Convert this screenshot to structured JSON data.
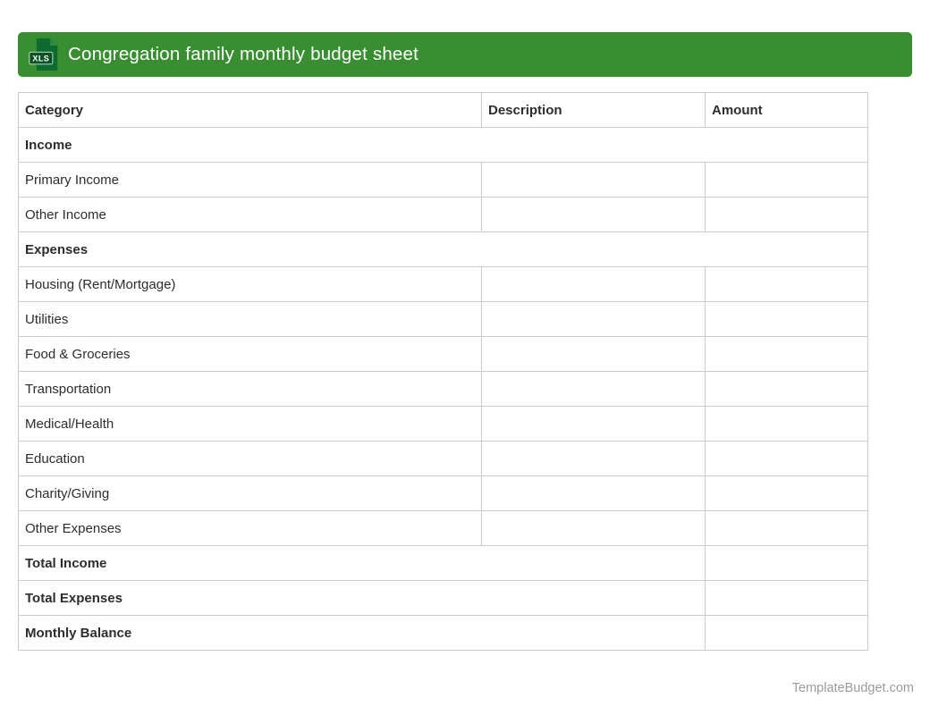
{
  "header": {
    "title": "Congregation family monthly budget sheet",
    "file_icon_label": "XLS"
  },
  "table": {
    "columns": [
      "Category",
      "Description",
      "Amount"
    ],
    "rows": [
      {
        "type": "section",
        "label": "Income"
      },
      {
        "type": "item",
        "category": "Primary Income",
        "description": "",
        "amount": ""
      },
      {
        "type": "item",
        "category": "Other Income",
        "description": "",
        "amount": ""
      },
      {
        "type": "section",
        "label": "Expenses"
      },
      {
        "type": "item",
        "category": "Housing (Rent/Mortgage)",
        "description": "",
        "amount": ""
      },
      {
        "type": "item",
        "category": "Utilities",
        "description": "",
        "amount": ""
      },
      {
        "type": "item",
        "category": "Food & Groceries",
        "description": "",
        "amount": ""
      },
      {
        "type": "item",
        "category": "Transportation",
        "description": "",
        "amount": ""
      },
      {
        "type": "item",
        "category": "Medical/Health",
        "description": "",
        "amount": ""
      },
      {
        "type": "item",
        "category": "Education",
        "description": "",
        "amount": ""
      },
      {
        "type": "item",
        "category": "Charity/Giving",
        "description": "",
        "amount": ""
      },
      {
        "type": "item",
        "category": "Other Expenses",
        "description": "",
        "amount": ""
      },
      {
        "type": "total",
        "label": "Total Income",
        "amount": ""
      },
      {
        "type": "total",
        "label": "Total Expenses",
        "amount": ""
      },
      {
        "type": "total",
        "label": "Monthly Balance",
        "amount": ""
      }
    ]
  },
  "footer": {
    "site": "TemplateBudget.com"
  },
  "colors": {
    "header_bar": "#388e31",
    "icon_document": "#0e6b2f",
    "icon_fold": "#2f8a46",
    "icon_badge": "#0b5226",
    "table_border": "#cccccc",
    "text": "#2d2d2d",
    "footer_text": "#9b9b9b"
  }
}
